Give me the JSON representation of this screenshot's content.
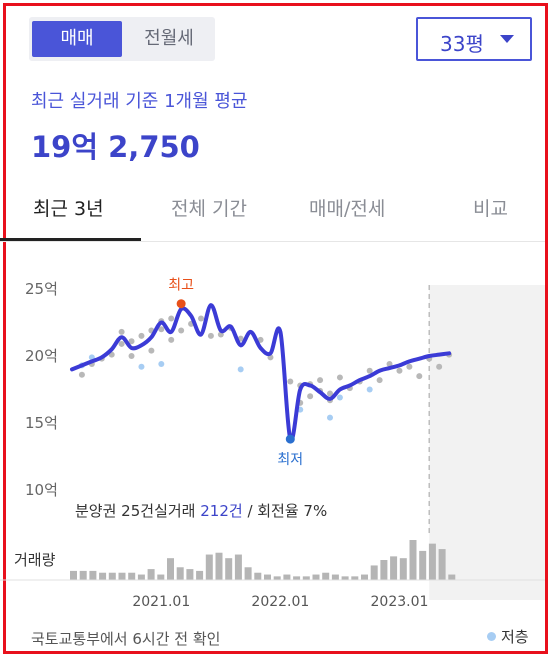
{
  "trade_toggle": {
    "sale_label": "매매",
    "lease_label": "전월세",
    "selected": "매매"
  },
  "area_select": {
    "value": "33평"
  },
  "average": {
    "label": "최근 실거래 기준 1개월 평균",
    "value": "19억 2,750"
  },
  "tabs": [
    {
      "label": "최근 3년",
      "active": true
    },
    {
      "label": "전체 기간",
      "active": false
    },
    {
      "label": "매매/전세",
      "active": false
    },
    {
      "label": "비교",
      "active": false
    }
  ],
  "stats": {
    "presale_text": "분양권 25건",
    "trades_prefix": "실거래 ",
    "trades_value": "212건",
    "turnover_text": " / 회전율 7%"
  },
  "volume_label": "거래량",
  "source_text": "국토교통부에서 6시간 전 확인",
  "legend": {
    "low_floor_label": "저층",
    "low_floor_color": "#a7cdf3"
  },
  "chart_data": {
    "type": "line",
    "y_axis_labels": [
      "25억",
      "20억",
      "15억",
      "10억"
    ],
    "y_ticks": [
      25,
      20,
      15,
      10
    ],
    "ylim": [
      10,
      25
    ],
    "y_unit": "억",
    "xlim": [
      "2020-04",
      "2023-07"
    ],
    "x_tick_labels": [
      "2021.01",
      "2022.01",
      "2023.01"
    ],
    "x_ticks": [
      "2021-01",
      "2022-01",
      "2023-01"
    ],
    "line_color": "#3b3bd6",
    "series": [
      {
        "x": [
          "2020-04",
          "2020-05",
          "2020-06",
          "2020-07",
          "2020-08",
          "2020-09",
          "2020-10",
          "2020-11",
          "2020-12",
          "2021-01",
          "2021-02",
          "2021-03",
          "2021-04",
          "2021-05",
          "2021-06",
          "2021-07",
          "2021-08",
          "2021-09",
          "2021-10",
          "2021-11",
          "2021-12",
          "2022-01",
          "2022-02",
          "2022-03",
          "2022-04",
          "2022-05",
          "2022-06",
          "2022-07",
          "2022-08",
          "2022-09",
          "2022-10",
          "2022-11",
          "2022-12",
          "2023-01",
          "2023-02",
          "2023-03",
          "2023-04",
          "2023-05",
          "2023-06"
        ],
        "values": [
          19.0,
          19.3,
          19.6,
          19.9,
          20.5,
          21.4,
          20.6,
          20.8,
          21.4,
          22.5,
          21.8,
          23.5,
          23.0,
          21.6,
          23.8,
          21.9,
          22.2,
          20.8,
          21.8,
          20.6,
          20.2,
          21.8,
          13.8,
          17.5,
          17.8,
          17.3,
          16.8,
          17.5,
          17.8,
          18.2,
          18.5,
          18.9,
          19.1,
          19.3,
          19.6,
          19.8,
          20.0,
          20.1,
          20.2
        ]
      }
    ],
    "annotations": [
      {
        "label": "최고",
        "x": "2021-03",
        "value": 23.9,
        "color": "#e8501a"
      },
      {
        "label": "최저",
        "x": "2022-02",
        "value": 13.8,
        "color": "#2a6fcf"
      }
    ],
    "recent_highlight_from": "2023-04",
    "volume": {
      "label": "거래량",
      "values": [
        5,
        5,
        5,
        4,
        4,
        4,
        4,
        3,
        6,
        3,
        12,
        7,
        6,
        5,
        14,
        15,
        12,
        14,
        7,
        4,
        3,
        2,
        3,
        2,
        2,
        3,
        4,
        3,
        2,
        2,
        3,
        8,
        11,
        13,
        12,
        22,
        16,
        20,
        17,
        3
      ]
    },
    "scatter_high_floor": [
      [
        "2020-05",
        18.6
      ],
      [
        "2020-06",
        19.4
      ],
      [
        "2020-07",
        19.8
      ],
      [
        "2020-08",
        20.1
      ],
      [
        "2020-09",
        20.9
      ],
      [
        "2020-09",
        21.8
      ],
      [
        "2020-10",
        21.1
      ],
      [
        "2020-10",
        20.0
      ],
      [
        "2020-11",
        21.5
      ],
      [
        "2020-12",
        20.4
      ],
      [
        "2020-12",
        21.9
      ],
      [
        "2021-01",
        22.6
      ],
      [
        "2021-01",
        22.0
      ],
      [
        "2021-02",
        21.2
      ],
      [
        "2021-02",
        22.8
      ],
      [
        "2021-03",
        21.9
      ],
      [
        "2021-04",
        22.4
      ],
      [
        "2021-05",
        22.8
      ],
      [
        "2021-06",
        21.5
      ],
      [
        "2021-07",
        21.6
      ],
      [
        "2021-08",
        22.1
      ],
      [
        "2021-09",
        21.3
      ],
      [
        "2021-11",
        21.2
      ],
      [
        "2021-12",
        19.9
      ],
      [
        "2022-02",
        18.1
      ],
      [
        "2022-03",
        17.8
      ],
      [
        "2022-03",
        16.5
      ],
      [
        "2022-04",
        17.0
      ],
      [
        "2022-04",
        17.9
      ],
      [
        "2022-05",
        18.2
      ],
      [
        "2022-05",
        17.4
      ],
      [
        "2022-06",
        16.7
      ],
      [
        "2022-06",
        17.2
      ],
      [
        "2022-07",
        18.4
      ],
      [
        "2022-08",
        17.6
      ],
      [
        "2022-09",
        18.1
      ],
      [
        "2022-10",
        18.9
      ],
      [
        "2022-11",
        18.2
      ],
      [
        "2022-12",
        19.4
      ],
      [
        "2023-01",
        18.9
      ],
      [
        "2023-02",
        19.2
      ],
      [
        "2023-03",
        18.5
      ],
      [
        "2023-04",
        19.8
      ],
      [
        "2023-05",
        19.2
      ],
      [
        "2023-06",
        20.1
      ]
    ],
    "scatter_low_floor": [
      [
        "2020-05",
        19.3
      ],
      [
        "2020-06",
        19.9
      ],
      [
        "2020-11",
        19.2
      ],
      [
        "2021-01",
        19.4
      ],
      [
        "2021-09",
        19.0
      ],
      [
        "2022-03",
        16.0
      ],
      [
        "2022-06",
        15.4
      ],
      [
        "2022-07",
        16.9
      ],
      [
        "2022-10",
        17.5
      ]
    ]
  }
}
